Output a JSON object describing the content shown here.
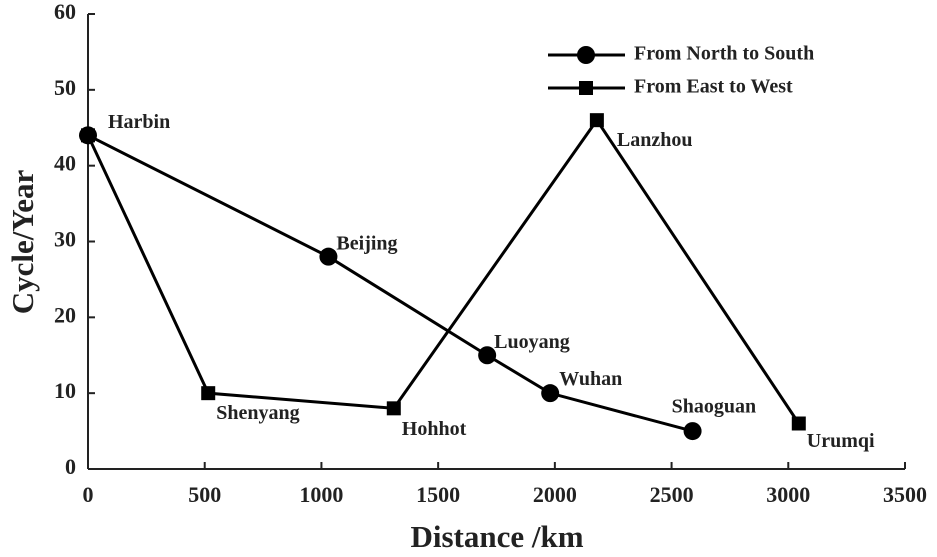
{
  "chart_data": {
    "type": "line",
    "xlabel": "Distance /km",
    "ylabel": "Cycle/Year",
    "xlim": [
      0,
      3500
    ],
    "xticks": [
      0,
      500,
      1000,
      1500,
      2000,
      2500,
      3000,
      3500
    ],
    "ylim": [
      0,
      60
    ],
    "yticks": [
      0,
      10,
      20,
      30,
      40,
      50,
      60
    ],
    "legend": "upper right",
    "series": [
      {
        "name": "From North to South",
        "color": "#000000",
        "marker": "circle",
        "x": [
          0,
          1030,
          1710,
          1980,
          2590
        ],
        "values": [
          44,
          28,
          15,
          10,
          5
        ],
        "labels": [
          "Harbin",
          "Beijing",
          "Luoyang",
          "Wuhan",
          "Shaoguan"
        ]
      },
      {
        "name": "From East to West",
        "color": "#000000",
        "marker": "square",
        "x": [
          0,
          515,
          1310,
          2180,
          3045
        ],
        "values": [
          44,
          10,
          8,
          46,
          6
        ],
        "labels": [
          null,
          "Shenyang",
          "Hohhot",
          "Lanzhou",
          "Urumqi"
        ]
      }
    ]
  }
}
